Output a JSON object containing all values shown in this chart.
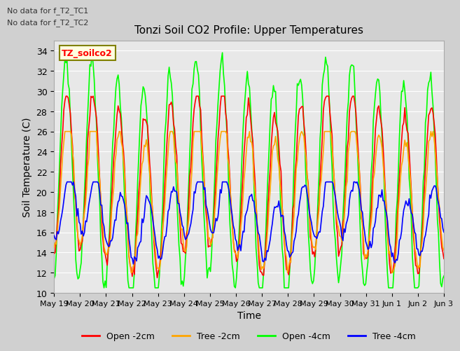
{
  "title": "Tonzi Soil CO2 Profile: Upper Temperatures",
  "xlabel": "Time",
  "ylabel": "Soil Temperature (C)",
  "ylim": [
    10,
    35
  ],
  "yticks": [
    10,
    12,
    14,
    16,
    18,
    20,
    22,
    24,
    26,
    28,
    30,
    32,
    34
  ],
  "background_color": "#e8e8e8",
  "fig_background": "#d0d0d0",
  "colors": {
    "open_2cm": "#ff0000",
    "tree_2cm": "#ffa500",
    "open_4cm": "#00ff00",
    "tree_4cm": "#0000ff"
  },
  "legend_labels": [
    "Open -2cm",
    "Tree -2cm",
    "Open -4cm",
    "Tree -4cm"
  ],
  "annotations": [
    "No data for f_T2_TC1",
    "No data for f_T2_TC2"
  ],
  "site_label": "TZ_soilco2",
  "x_tick_labels": [
    "May 19",
    "May 20",
    "May 21",
    "May 22",
    "May 23",
    "May 24",
    "May 25",
    "May 26",
    "May 27",
    "May 28",
    "May 29",
    "May 30",
    "May 31",
    "Jun 1",
    "Jun 2",
    "Jun 3"
  ],
  "n_days": 15,
  "points_per_day": 24
}
